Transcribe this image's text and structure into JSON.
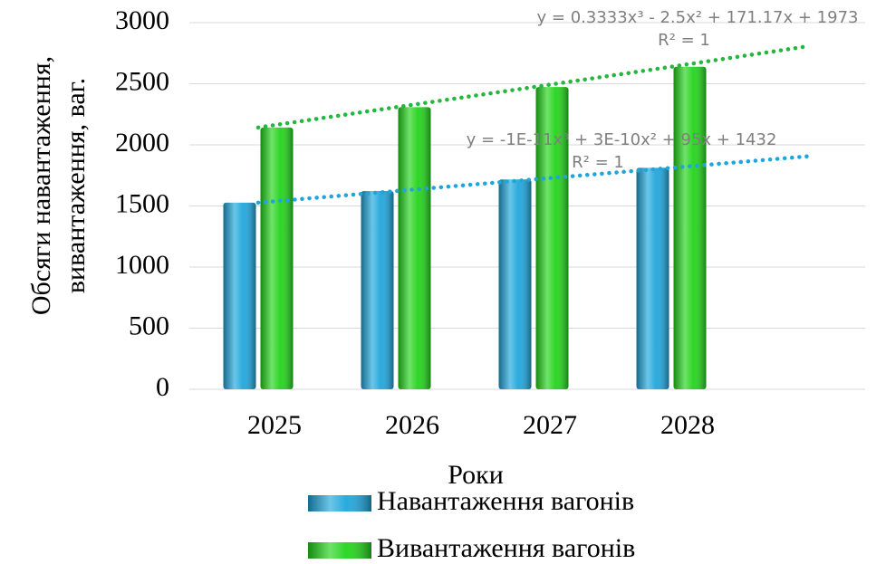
{
  "chart_data": {
    "type": "bar",
    "y_label": [
      "Обсяги навантаження,",
      "вивантаження, ваг."
    ],
    "x_label": "Роки",
    "categories": [
      "2025",
      "2026",
      "2027",
      "2028"
    ],
    "series": [
      {
        "name": "Навантаження вагонів",
        "color": "#1ea6dc",
        "values": [
          1527,
          1622,
          1717,
          1812
        ]
      },
      {
        "name": "Вивантаження вагонів",
        "color": "#22d41a",
        "values": [
          2142,
          2308,
          2473,
          2639
        ]
      }
    ],
    "trendlines": [
      {
        "equation": "y = -1E-11x³ + 3E-10x² + 95x + 1432",
        "r2": "R² = 1",
        "color": "#1ea6dc",
        "x": [
          1,
          2,
          3,
          4,
          5
        ],
        "values": [
          1527,
          1622,
          1717,
          1812,
          1907
        ]
      },
      {
        "equation": "y = 0.3333x³ - 2.5x² + 171.17x + 1973",
        "r2": "R² = 1",
        "color": "#22b83a",
        "x": [
          1,
          2,
          3,
          4,
          5
        ],
        "values": [
          2142,
          2308,
          2473,
          2639,
          2808
        ]
      }
    ],
    "ylim": [
      0,
      3000
    ],
    "yticks": [
      0,
      500,
      1000,
      1500,
      2000,
      2500,
      3000
    ],
    "grid": true,
    "legend": "bottom"
  }
}
